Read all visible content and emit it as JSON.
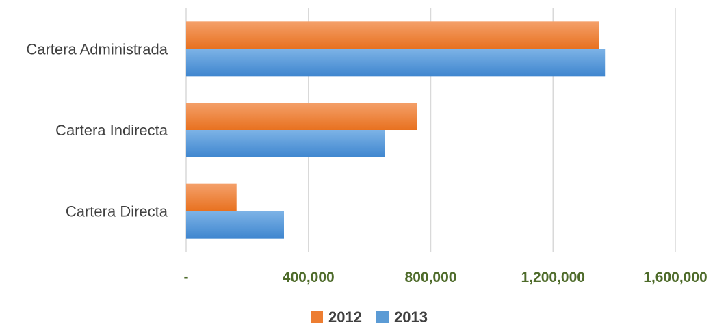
{
  "chart_data": {
    "type": "bar",
    "orientation": "horizontal",
    "title": "",
    "xlabel": "",
    "ylabel": "",
    "categories": [
      "Cartera Administrada",
      "Cartera Indirecta",
      "Cartera Directa"
    ],
    "series": [
      {
        "name": "2012",
        "color": "#ed7d31",
        "values": [
          1350000,
          755000,
          165000
        ]
      },
      {
        "name": "2013",
        "color": "#5b9bd5",
        "values": [
          1370000,
          650000,
          320000
        ]
      }
    ],
    "xlim": [
      0,
      1600000
    ],
    "xticks": [
      0,
      400000,
      800000,
      1200000,
      1600000
    ],
    "xtick_labels": [
      "-",
      "400,000",
      "800,000",
      "1,200,000",
      "1,600,000"
    ],
    "grid": true,
    "legend_position": "bottom"
  }
}
